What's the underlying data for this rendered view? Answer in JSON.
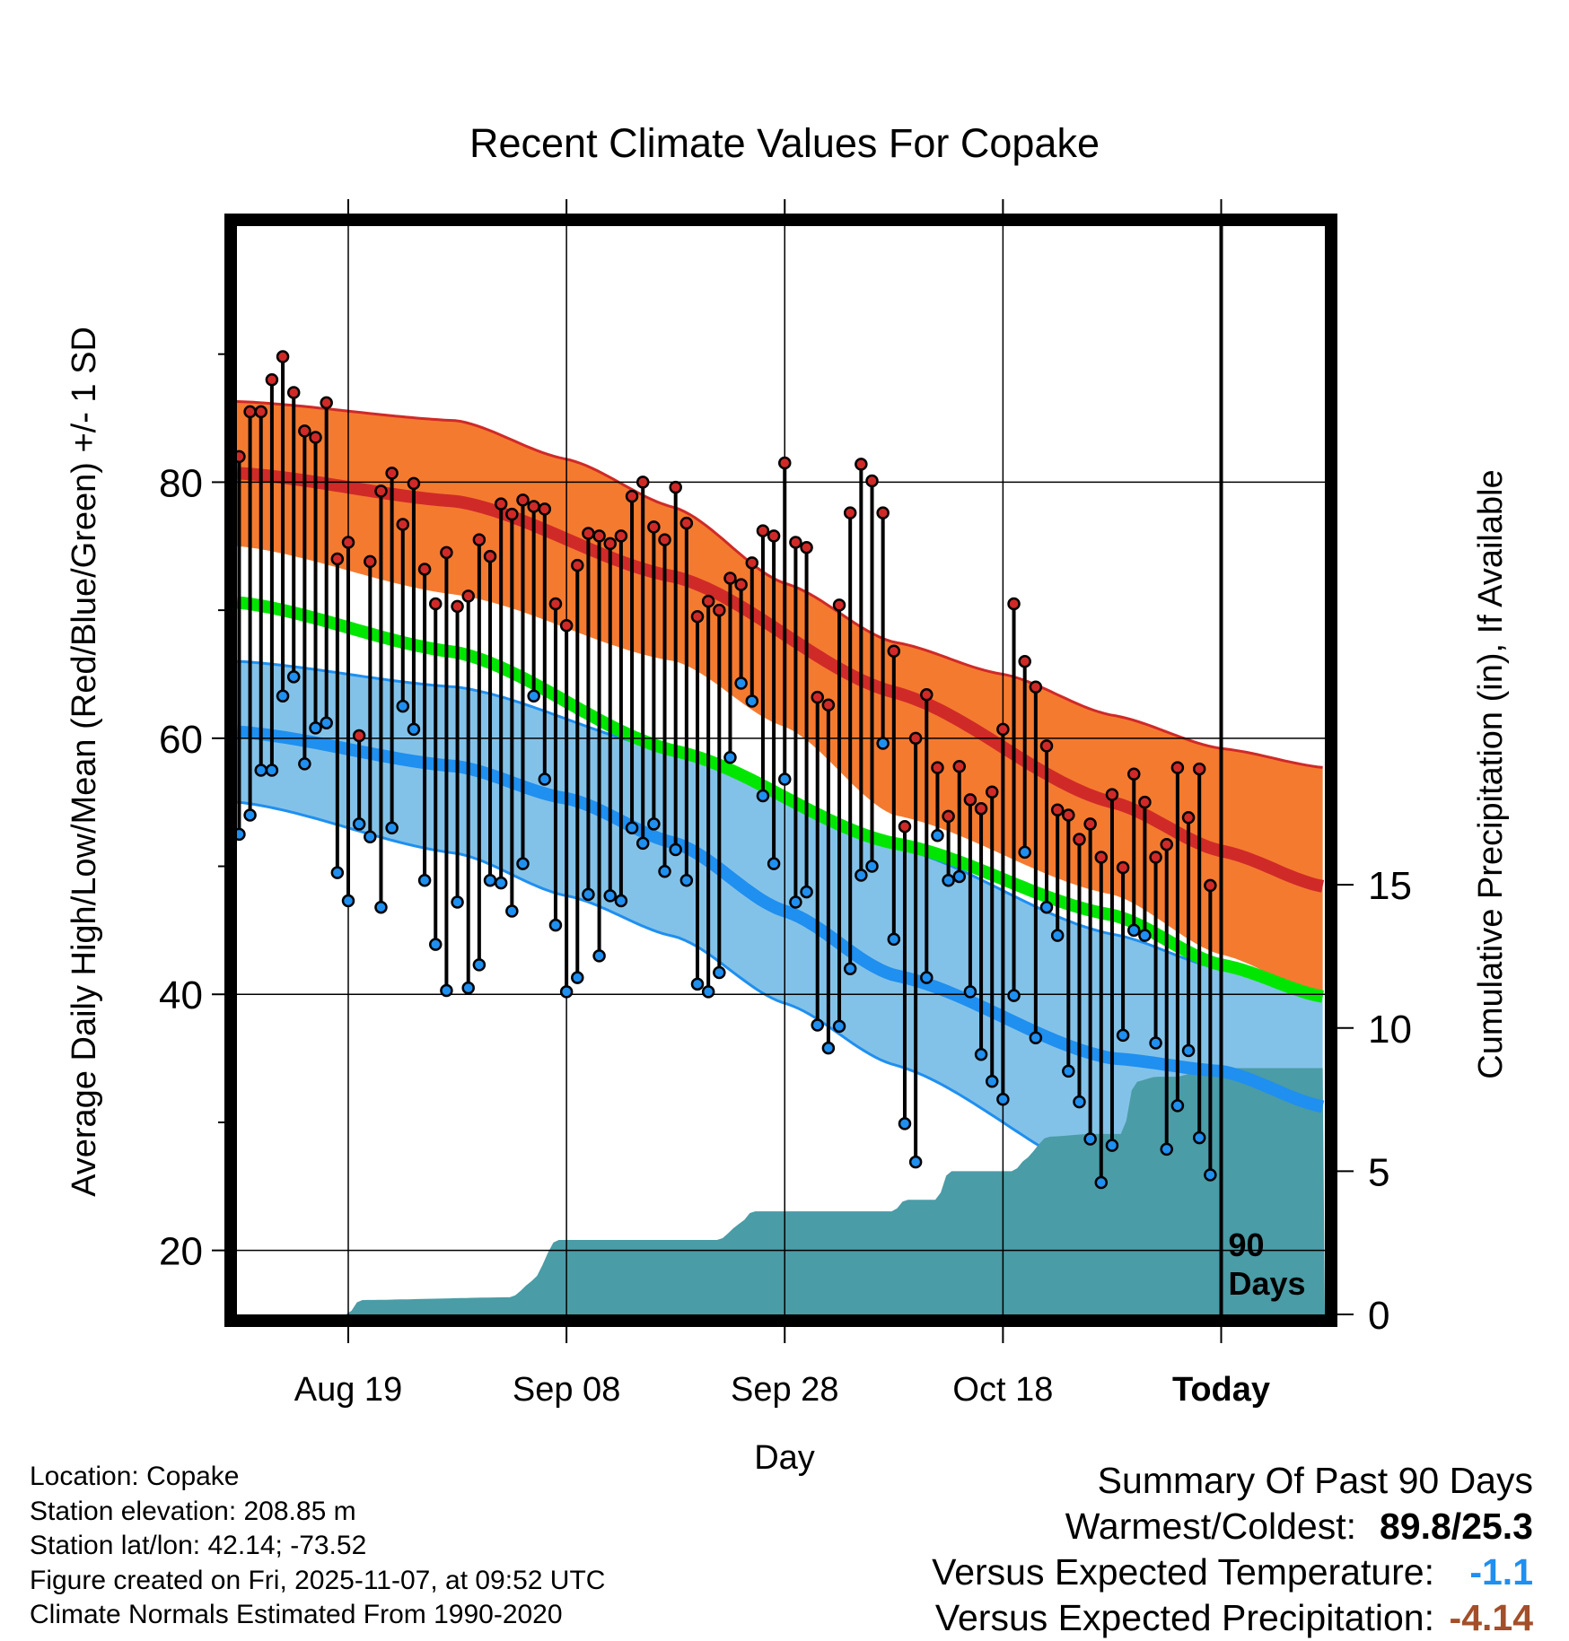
{
  "chart_data": {
    "type": "line",
    "title": "Recent Climate Values For Copake",
    "ylabel": "Average Daily High/Low/Mean (Red/Blue/Green) +/- 1 SD",
    "y2label": "Cumulative Precipitation (in), If Available",
    "xlabel": "Day",
    "ylim": [
      15,
      100
    ],
    "y2lim": [
      0,
      38
    ],
    "yticks": [
      20,
      40,
      60,
      80
    ],
    "y2ticks": [
      0,
      5,
      10,
      15
    ],
    "xticks": [
      {
        "day": 10,
        "label": "Aug 19"
      },
      {
        "day": 30,
        "label": "Sep 08"
      },
      {
        "day": 50,
        "label": "Sep 28"
      },
      {
        "day": 70,
        "label": "Oct 18"
      },
      {
        "day": 90,
        "label": "Today"
      }
    ],
    "today_marker": {
      "day": 90,
      "label_line1": "90",
      "label_line2": "Days"
    },
    "xlim": [
      -0.2,
      99.5
    ],
    "normals": {
      "high_mean": [
        [
          0,
          80.7
        ],
        [
          20,
          78.5
        ],
        [
          40,
          72.6
        ],
        [
          60,
          63.6
        ],
        [
          80,
          55.0
        ],
        [
          90,
          51.2
        ],
        [
          99.5,
          48.4
        ]
      ],
      "high_upper": [
        [
          0,
          86.3
        ],
        [
          20,
          84.8
        ],
        [
          30,
          81.8
        ],
        [
          40,
          78.0
        ],
        [
          50,
          72.1
        ],
        [
          60,
          67.5
        ],
        [
          70,
          65.0
        ],
        [
          80,
          61.8
        ],
        [
          90,
          59.2
        ],
        [
          99.5,
          57.7
        ]
      ],
      "high_lower": [
        [
          0,
          75.0
        ],
        [
          20,
          71.2
        ],
        [
          40,
          66.0
        ],
        [
          50,
          60.9
        ],
        [
          60,
          54.0
        ],
        [
          80,
          47.8
        ],
        [
          90,
          43.1
        ],
        [
          99.5,
          39.8
        ]
      ],
      "mean": [
        [
          0,
          70.6
        ],
        [
          20,
          66.7
        ],
        [
          40,
          59.0
        ],
        [
          60,
          51.8
        ],
        [
          80,
          46.2
        ],
        [
          90,
          42.3
        ],
        [
          99.5,
          39.8
        ]
      ],
      "low_mean": [
        [
          0,
          60.5
        ],
        [
          20,
          57.8
        ],
        [
          30,
          55.3
        ],
        [
          40,
          51.8
        ],
        [
          50,
          46.5
        ],
        [
          60,
          41.5
        ],
        [
          80,
          35.0
        ],
        [
          90,
          34.0
        ],
        [
          99.5,
          31.2
        ]
      ],
      "low_upper": [
        [
          0,
          66.0
        ],
        [
          20,
          64.0
        ],
        [
          40,
          59.0
        ],
        [
          60,
          51.5
        ],
        [
          80,
          44.7
        ],
        [
          90,
          42.0
        ],
        [
          99.5,
          39.8
        ]
      ],
      "low_lower": [
        [
          0,
          55.0
        ],
        [
          20,
          51.0
        ],
        [
          30,
          47.7
        ],
        [
          40,
          44.5
        ],
        [
          50,
          39.3
        ],
        [
          60,
          34.5
        ],
        [
          80,
          25.5
        ],
        [
          90,
          21.0
        ],
        [
          99.5,
          18.0
        ]
      ]
    },
    "precip_cumulative": [
      [
        0,
        0
      ],
      [
        10,
        0
      ],
      [
        11,
        0.5
      ],
      [
        25,
        0.6
      ],
      [
        27,
        1.2
      ],
      [
        29,
        2.6
      ],
      [
        44,
        2.6
      ],
      [
        46,
        3.2
      ],
      [
        47,
        3.6
      ],
      [
        60,
        3.6
      ],
      [
        61,
        4.0
      ],
      [
        64,
        4.0
      ],
      [
        65,
        5.0
      ],
      [
        71,
        5.0
      ],
      [
        72,
        5.4
      ],
      [
        74,
        6.2
      ],
      [
        78,
        6.3
      ],
      [
        81,
        6.3
      ],
      [
        82,
        8.1
      ],
      [
        84,
        8.3
      ],
      [
        86,
        8.3
      ],
      [
        88,
        8.5
      ],
      [
        90,
        8.6
      ],
      [
        99.5,
        8.6
      ]
    ],
    "daily": [
      {
        "day": 0,
        "high": 82,
        "low": 52.5
      },
      {
        "day": 1,
        "high": 85.5,
        "low": 54
      },
      {
        "day": 2,
        "high": 85.5,
        "low": 57.5
      },
      {
        "day": 3,
        "high": 88,
        "low": 57.5
      },
      {
        "day": 4,
        "high": 89.8,
        "low": 63.3
      },
      {
        "day": 5,
        "high": 87,
        "low": 64.8
      },
      {
        "day": 6,
        "high": 84,
        "low": 58
      },
      {
        "day": 7,
        "high": 83.5,
        "low": 60.8
      },
      {
        "day": 8,
        "high": 86.2,
        "low": 61.2
      },
      {
        "day": 9,
        "high": 74,
        "low": 49.5
      },
      {
        "day": 10,
        "high": 75.3,
        "low": 47.3
      },
      {
        "day": 11,
        "high": 60.2,
        "low": 53.3
      },
      {
        "day": 12,
        "high": 73.8,
        "low": 52.3
      },
      {
        "day": 13,
        "high": 79.3,
        "low": 46.8
      },
      {
        "day": 14,
        "high": 80.7,
        "low": 53
      },
      {
        "day": 15,
        "high": 76.7,
        "low": 62.5
      },
      {
        "day": 16,
        "high": 79.9,
        "low": 60.7
      },
      {
        "day": 17,
        "high": 73.2,
        "low": 48.9
      },
      {
        "day": 18,
        "high": 70.5,
        "low": 43.9
      },
      {
        "day": 19,
        "high": 74.5,
        "low": 40.3
      },
      {
        "day": 20,
        "high": 70.3,
        "low": 47.2
      },
      {
        "day": 21,
        "high": 71.1,
        "low": 40.5
      },
      {
        "day": 22,
        "high": 75.5,
        "low": 42.3
      },
      {
        "day": 23,
        "high": 74.2,
        "low": 48.9
      },
      {
        "day": 24,
        "high": 78.3,
        "low": 48.7
      },
      {
        "day": 25,
        "high": 77.5,
        "low": 46.5
      },
      {
        "day": 26,
        "high": 78.6,
        "low": 50.2
      },
      {
        "day": 27,
        "high": 78.1,
        "low": 63.3
      },
      {
        "day": 28,
        "high": 77.9,
        "low": 56.8
      },
      {
        "day": 29,
        "high": 70.5,
        "low": 45.4
      },
      {
        "day": 30,
        "high": 68.8,
        "low": 40.2
      },
      {
        "day": 31,
        "high": 73.5,
        "low": 41.3
      },
      {
        "day": 32,
        "high": 76,
        "low": 47.8
      },
      {
        "day": 33,
        "high": 75.8,
        "low": 43
      },
      {
        "day": 34,
        "high": 75.2,
        "low": 47.7
      },
      {
        "day": 35,
        "high": 75.8,
        "low": 47.3
      },
      {
        "day": 36,
        "high": 78.9,
        "low": 53
      },
      {
        "day": 37,
        "high": 80,
        "low": 51.8
      },
      {
        "day": 38,
        "high": 76.5,
        "low": 53.3
      },
      {
        "day": 39,
        "high": 75.5,
        "low": 49.6
      },
      {
        "day": 40,
        "high": 79.6,
        "low": 51.3
      },
      {
        "day": 41,
        "high": 76.8,
        "low": 48.9
      },
      {
        "day": 42,
        "high": 69.5,
        "low": 40.8
      },
      {
        "day": 43,
        "high": 70.7,
        "low": 40.2
      },
      {
        "day": 44,
        "high": 70,
        "low": 41.7
      },
      {
        "day": 45,
        "high": 72.5,
        "low": 58.5
      },
      {
        "day": 46,
        "high": 72,
        "low": 64.3
      },
      {
        "day": 47,
        "high": 73.7,
        "low": 62.9
      },
      {
        "day": 48,
        "high": 76.2,
        "low": 55.5
      },
      {
        "day": 49,
        "high": 75.8,
        "low": 50.2
      },
      {
        "day": 50,
        "high": 81.5,
        "low": 56.8
      },
      {
        "day": 51,
        "high": 75.3,
        "low": 47.2
      },
      {
        "day": 52,
        "high": 74.9,
        "low": 48
      },
      {
        "day": 53,
        "high": 63.2,
        "low": 37.6
      },
      {
        "day": 54,
        "high": 62.6,
        "low": 35.8
      },
      {
        "day": 55,
        "high": 70.4,
        "low": 37.5
      },
      {
        "day": 56,
        "high": 77.6,
        "low": 42
      },
      {
        "day": 57,
        "high": 81.4,
        "low": 49.3
      },
      {
        "day": 58,
        "high": 80.1,
        "low": 50
      },
      {
        "day": 59,
        "high": 77.6,
        "low": 59.6
      },
      {
        "day": 60,
        "high": 66.8,
        "low": 44.3
      },
      {
        "day": 61,
        "high": 53.1,
        "low": 29.9
      },
      {
        "day": 62,
        "high": 60,
        "low": 26.9
      },
      {
        "day": 63,
        "high": 63.4,
        "low": 41.3
      },
      {
        "day": 64,
        "high": 57.7,
        "low": 52.4
      },
      {
        "day": 65,
        "high": 53.9,
        "low": 48.9
      },
      {
        "day": 66,
        "high": 57.8,
        "low": 49.2
      },
      {
        "day": 67,
        "high": 55.2,
        "low": 40.2
      },
      {
        "day": 68,
        "high": 54.5,
        "low": 35.3
      },
      {
        "day": 69,
        "high": 55.8,
        "low": 33.2
      },
      {
        "day": 70,
        "high": 60.7,
        "low": 31.8
      },
      {
        "day": 71,
        "high": 70.5,
        "low": 39.9
      },
      {
        "day": 72,
        "high": 66,
        "low": 51.1
      },
      {
        "day": 73,
        "high": 64,
        "low": 36.6
      },
      {
        "day": 74,
        "high": 59.4,
        "low": 46.8
      },
      {
        "day": 75,
        "high": 54.4,
        "low": 44.6
      },
      {
        "day": 76,
        "high": 54,
        "low": 34
      },
      {
        "day": 77,
        "high": 52.1,
        "low": 31.6
      },
      {
        "day": 78,
        "high": 53.3,
        "low": 28.7
      },
      {
        "day": 79,
        "high": 50.7,
        "low": 25.3
      },
      {
        "day": 80,
        "high": 55.6,
        "low": 28.2
      },
      {
        "day": 81,
        "high": 49.9,
        "low": 36.8
      },
      {
        "day": 82,
        "high": 57.2,
        "low": 45
      },
      {
        "day": 83,
        "high": 55,
        "low": 44.6
      },
      {
        "day": 84,
        "high": 50.7,
        "low": 36.2
      },
      {
        "day": 85,
        "high": 51.7,
        "low": 27.9
      },
      {
        "day": 86,
        "high": 57.7,
        "low": 31.3
      },
      {
        "day": 87,
        "high": 53.8,
        "low": 35.6
      },
      {
        "day": 88,
        "high": 57.6,
        "low": 28.8
      },
      {
        "day": 89,
        "high": 48.5,
        "low": 25.9
      }
    ]
  },
  "colors": {
    "high_band": "#f47a30",
    "high_line": "#cf2a28",
    "mean_line": "#00e600",
    "low_band": "#83c2e8",
    "low_line": "#1f8ff0",
    "precip": "#4a9ca6",
    "high_dot": "#cf2a28",
    "low_dot": "#1f8ff0",
    "departure_temp": "#1f8ff0",
    "departure_precip": "#a34f2a"
  },
  "station": {
    "location": "Location: Copake",
    "elevation": "Station elevation: 208.85 m",
    "latlon": "Station lat/lon: 42.14; -73.52",
    "created": "Figure created on Fri, 2025-11-07, at 09:52 UTC",
    "normals": "Climate Normals Estimated From 1990-2020"
  },
  "summary": {
    "heading": "Summary Of Past 90 Days",
    "warm_cold_label": "Warmest/Coldest:",
    "warm_cold_value": "89.8/25.3",
    "temp_label": "Versus Expected Temperature:",
    "temp_value": "-1.1",
    "precip_label": "Versus Expected Precipitation:",
    "precip_value": "-4.14"
  }
}
